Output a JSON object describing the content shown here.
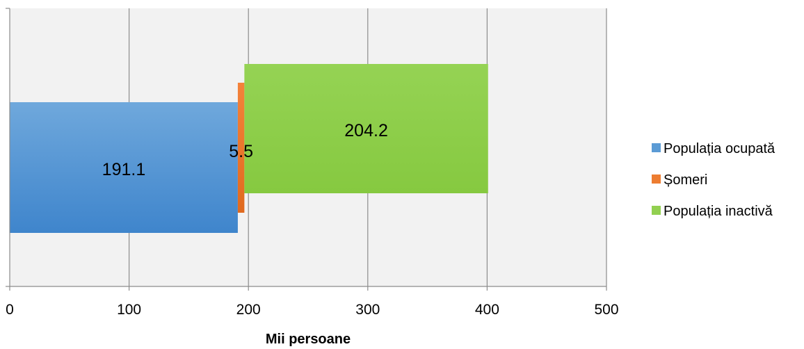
{
  "chart_data": {
    "type": "bar",
    "orientation": "horizontal",
    "title": "",
    "xlabel": "Mii persoane",
    "ylabel": "",
    "xlim": [
      0,
      500
    ],
    "x_ticks": [
      "0",
      "100",
      "200",
      "300",
      "400",
      "500"
    ],
    "grid": true,
    "legend_position": "right",
    "series": [
      {
        "name": "Populația ocupată",
        "value": 191.1,
        "start": 0,
        "label": "191.1",
        "color": "#5b9bd5"
      },
      {
        "name": "Șomeri",
        "value": 5.5,
        "start": 191.1,
        "label": "5.5",
        "color": "#ed7d31"
      },
      {
        "name": "Populația inactivă",
        "value": 204.2,
        "start": 196.6,
        "label": "204.2",
        "color": "#92d050"
      }
    ]
  }
}
